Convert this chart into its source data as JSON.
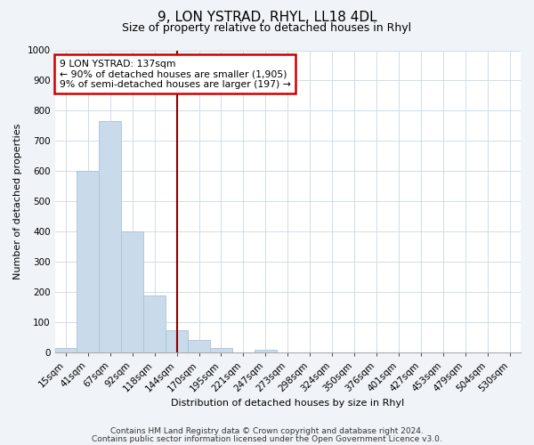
{
  "title": "9, LON YSTRAD, RHYL, LL18 4DL",
  "subtitle": "Size of property relative to detached houses in Rhyl",
  "xlabel": "Distribution of detached houses by size in Rhyl",
  "ylabel": "Number of detached properties",
  "bin_labels": [
    "15sqm",
    "41sqm",
    "67sqm",
    "92sqm",
    "118sqm",
    "144sqm",
    "170sqm",
    "195sqm",
    "221sqm",
    "247sqm",
    "273sqm",
    "298sqm",
    "324sqm",
    "350sqm",
    "376sqm",
    "401sqm",
    "427sqm",
    "453sqm",
    "479sqm",
    "504sqm",
    "530sqm"
  ],
  "bar_values": [
    15,
    600,
    765,
    400,
    190,
    75,
    40,
    15,
    0,
    10,
    0,
    0,
    0,
    0,
    0,
    0,
    0,
    0,
    0,
    0,
    0
  ],
  "bar_color": "#c9daea",
  "bar_edgecolor": "#a8c4d8",
  "vline_x": 5.0,
  "vline_color": "#8b0000",
  "annotation_text": "9 LON YSTRAD: 137sqm\n← 90% of detached houses are smaller (1,905)\n9% of semi-detached houses are larger (197) →",
  "annotation_box_edgecolor": "#cc0000",
  "annotation_box_facecolor": "#ffffff",
  "ylim": [
    0,
    1000
  ],
  "yticks": [
    0,
    100,
    200,
    300,
    400,
    500,
    600,
    700,
    800,
    900,
    1000
  ],
  "footer_line1": "Contains HM Land Registry data © Crown copyright and database right 2024.",
  "footer_line2": "Contains public sector information licensed under the Open Government Licence v3.0.",
  "bg_color": "#f0f4f8",
  "plot_bg_color": "#ffffff",
  "grid_color": "#d0dce8",
  "title_fontsize": 11,
  "subtitle_fontsize": 9,
  "axis_label_fontsize": 8,
  "tick_fontsize": 7.5,
  "footer_fontsize": 6.5
}
